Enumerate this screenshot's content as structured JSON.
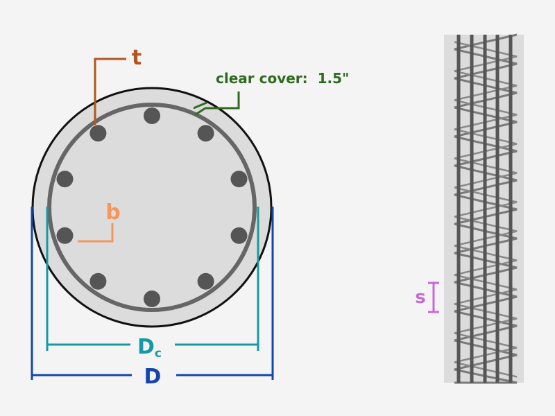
{
  "labels": {
    "t": "t",
    "clear_cover": "clear cover:  1.5\"",
    "b": "b",
    "dc_main": "D",
    "dc_sub": "c",
    "d": "D",
    "s": "s"
  },
  "colors": {
    "background": "#f4f4f4",
    "concrete": "#dcdcdc",
    "outline": "#111111",
    "steel": "#666666",
    "tie_label": "#b5541c",
    "cover_label": "#2f6b1f",
    "bar_label": "#f5965c",
    "core_dimension": "#1599a8",
    "overall_dimension": "#1446a8",
    "spacing_label": "#c86ad6"
  },
  "section": {
    "longitudinal_bar_count": 10
  }
}
